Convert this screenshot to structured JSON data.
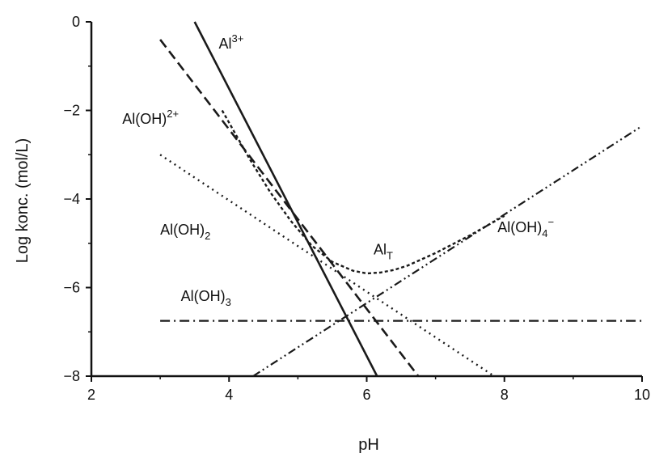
{
  "chart_data": {
    "type": "line",
    "xlabel": "pH",
    "ylabel": "Log konc. (mol/L)",
    "xlim": [
      2,
      10
    ],
    "ylim": [
      -8,
      0
    ],
    "x_ticks": [
      "2",
      "4",
      "6",
      "8",
      "10"
    ],
    "y_ticks": [
      "0",
      "−2",
      "−4",
      "−6",
      "−8"
    ],
    "grid": false,
    "series": [
      {
        "name": "Al3+",
        "style": "solid",
        "x": [
          3.5,
          6.15
        ],
        "y": [
          0.0,
          -8.0
        ]
      },
      {
        "name": "Al(OH)2+",
        "style": "dashed",
        "x": [
          3.0,
          6.75
        ],
        "y": [
          -0.4,
          -8.0
        ]
      },
      {
        "name": "Al(OH)2",
        "style": "dotted",
        "x": [
          3.0,
          7.85
        ],
        "y": [
          -3.0,
          -8.0
        ]
      },
      {
        "name": "Al(OH)3",
        "style": "dash-dot",
        "x": [
          3.0,
          10.0
        ],
        "y": [
          -6.75,
          -6.75
        ]
      },
      {
        "name": "Al(OH)4−",
        "style": "dash-dot-dot",
        "x": [
          4.35,
          10.0
        ],
        "y": [
          -8.0,
          -2.35
        ]
      },
      {
        "name": "AlT",
        "style": "short-dash",
        "x": [
          3.9,
          4.3,
          4.6,
          4.9,
          5.2,
          5.5,
          5.8,
          6.0,
          6.2,
          6.4,
          6.6,
          7.0,
          7.5,
          8.0
        ],
        "y": [
          -2.0,
          -3.1,
          -3.85,
          -4.5,
          -5.05,
          -5.42,
          -5.62,
          -5.68,
          -5.66,
          -5.6,
          -5.5,
          -5.22,
          -4.82,
          -4.38
        ]
      }
    ],
    "labels": [
      {
        "base": "Al",
        "sup": "3+",
        "sub": "",
        "tail": "",
        "x": 3.85,
        "y": -0.6
      },
      {
        "base": "Al(OH)",
        "sup": "2+",
        "sub": "",
        "tail": "",
        "x": 2.45,
        "y": -2.3
      },
      {
        "base": "Al(OH)",
        "sup": "",
        "sub": "2",
        "tail": "",
        "x": 3.0,
        "y": -4.8
      },
      {
        "base": "Al",
        "sup": "",
        "sub": "T",
        "tail": "",
        "x": 6.1,
        "y": -5.25
      },
      {
        "base": "Al(OH)",
        "sup": "−",
        "sub": "4",
        "tail": "",
        "x": 7.9,
        "y": -4.75
      },
      {
        "base": "Al(OH)",
        "sup": "",
        "sub": "3",
        "tail": "",
        "x": 3.3,
        "y": -6.3
      }
    ]
  }
}
